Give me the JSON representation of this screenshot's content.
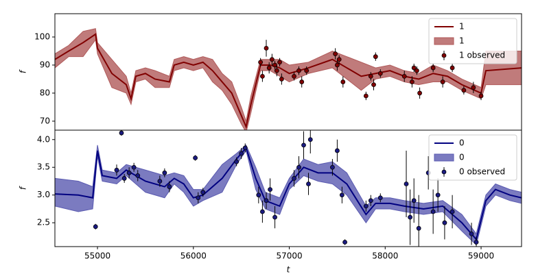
{
  "chart_data": [
    {
      "type": "line",
      "ylabel": "f",
      "xlim": [
        54556,
        59422
      ],
      "ylim": [
        66.8,
        108.3
      ],
      "yticks": [
        70,
        80,
        90,
        100
      ],
      "legend": "upper right",
      "series": [
        {
          "name": "1",
          "type": "line",
          "color": "#800000",
          "x": [
            54556,
            54700,
            54850,
            54980,
            55000,
            55150,
            55300,
            55350,
            55400,
            55500,
            55600,
            55750,
            55800,
            55900,
            56000,
            56100,
            56200,
            56300,
            56400,
            56500,
            56550,
            56600,
            56700,
            56800,
            56900,
            57000,
            57200,
            57450,
            57600,
            57750,
            57900,
            58050,
            58200,
            58350,
            58500,
            58650,
            58800,
            59000,
            59050,
            59422
          ],
          "values": [
            92,
            95,
            98,
            101,
            96,
            87,
            83,
            78,
            86,
            87,
            85,
            84,
            90,
            91,
            90,
            91,
            88,
            84,
            80,
            72,
            68,
            76,
            90,
            90,
            89,
            87,
            89,
            92,
            89,
            86,
            87,
            88,
            86,
            85,
            87,
            86,
            83,
            80,
            88,
            89
          ]
        },
        {
          "name": "1",
          "type": "band",
          "color": "#b05a5a",
          "x": [
            54556,
            54700,
            54850,
            54980,
            55000,
            55150,
            55300,
            55350,
            55400,
            55500,
            55600,
            55750,
            55800,
            55900,
            56000,
            56100,
            56200,
            56300,
            56400,
            56500,
            56550,
            56600,
            56700,
            56800,
            56900,
            57000,
            57200,
            57450,
            57600,
            57750,
            57900,
            58050,
            58200,
            58350,
            58500,
            58650,
            58800,
            59000,
            59050,
            59422
          ],
          "lower": [
            89,
            93,
            93,
            99,
            94,
            82,
            80,
            76,
            84,
            85,
            82,
            82,
            88,
            89,
            88,
            89,
            84,
            81,
            76,
            69,
            66,
            73,
            88,
            88,
            86,
            84,
            87,
            89,
            85,
            81,
            85,
            86,
            84,
            83,
            84,
            84,
            81,
            78,
            83,
            83
          ],
          "upper": [
            94,
            97,
            102,
            103,
            98,
            92,
            86,
            80,
            88,
            89,
            88,
            86,
            92,
            93,
            92,
            93,
            92,
            87,
            84,
            75,
            70,
            79,
            92,
            92,
            92,
            90,
            91,
            95,
            93,
            91,
            89,
            90,
            88,
            87,
            90,
            88,
            85,
            82,
            95,
            95
          ]
        },
        {
          "name": "1 observed",
          "type": "scatter",
          "color": "#800000",
          "x": [
            56700,
            56720,
            56760,
            56790,
            56820,
            56850,
            56870,
            56900,
            56920,
            57050,
            57100,
            57130,
            57180,
            57480,
            57500,
            57520,
            57560,
            57800,
            57850,
            57880,
            57900,
            57950,
            58200,
            58280,
            58300,
            58330,
            58360,
            58500,
            58600,
            58700,
            58820,
            58920,
            59000
          ],
          "values": [
            91,
            86,
            96,
            89,
            92,
            90,
            88,
            91,
            85,
            86,
            88,
            84,
            88,
            94,
            90,
            92,
            84,
            79,
            86,
            83,
            93,
            87,
            86,
            84,
            89,
            88,
            80,
            89,
            84,
            89,
            81,
            82,
            79
          ],
          "errors": [
            1.5,
            2,
            3,
            2,
            2,
            1.5,
            2,
            1.5,
            2,
            1.5,
            1.5,
            2,
            1.5,
            2,
            2,
            1.5,
            2,
            1.5,
            1.5,
            2,
            1.5,
            1.5,
            2,
            2,
            1.5,
            1.5,
            2,
            1.5,
            2,
            1.5,
            1.5,
            2,
            1.5
          ]
        }
      ]
    },
    {
      "type": "line",
      "ylabel": "f",
      "xlabel": "t",
      "xlim": [
        54556,
        59422
      ],
      "ylim": [
        2.07,
        4.17
      ],
      "yticks": [
        2.5,
        {
          "value": 3,
          "label": "3.0"
        },
        3.5,
        {
          "value": 4,
          "label": "4.0"
        }
      ],
      "xticks": [
        55000,
        56000,
        57000,
        58000,
        59000
      ],
      "legend": "upper right",
      "series": [
        {
          "name": "0",
          "type": "line",
          "color": "#000080",
          "x": [
            54556,
            54800,
            54950,
            55000,
            55050,
            55200,
            55300,
            55500,
            55700,
            55800,
            55900,
            56000,
            56100,
            56300,
            56450,
            56550,
            56650,
            56750,
            56900,
            57000,
            57150,
            57300,
            57450,
            57600,
            57800,
            57900,
            58050,
            58200,
            58400,
            58600,
            58800,
            58950,
            59050,
            59150,
            59300,
            59422
          ],
          "values": [
            3.02,
            3.0,
            2.95,
            3.8,
            3.35,
            3.3,
            3.45,
            3.25,
            3.15,
            3.3,
            3.2,
            2.95,
            3.0,
            3.3,
            3.65,
            3.85,
            3.3,
            2.9,
            2.8,
            3.2,
            3.5,
            3.4,
            3.4,
            3.2,
            2.65,
            2.85,
            2.85,
            2.8,
            2.75,
            2.8,
            2.5,
            2.2,
            2.9,
            3.1,
            3.0,
            2.95
          ]
        },
        {
          "name": "0",
          "type": "band",
          "color": "#5a5ab0",
          "x": [
            54556,
            54800,
            54950,
            55000,
            55050,
            55200,
            55300,
            55500,
            55700,
            55800,
            55900,
            56000,
            56100,
            56300,
            56450,
            56550,
            56650,
            56750,
            56900,
            57000,
            57150,
            57300,
            57450,
            57600,
            57800,
            57900,
            58050,
            58200,
            58400,
            58600,
            58800,
            58950,
            59050,
            59150,
            59300,
            59422
          ],
          "lower": [
            2.8,
            2.7,
            2.75,
            3.7,
            3.25,
            3.2,
            3.35,
            3.05,
            2.95,
            3.2,
            3.05,
            2.8,
            2.9,
            3.05,
            3.55,
            3.8,
            3.1,
            2.75,
            2.65,
            3.1,
            3.35,
            3.25,
            3.2,
            3.0,
            2.5,
            2.75,
            2.75,
            2.7,
            2.65,
            2.7,
            2.35,
            2.1,
            2.8,
            3.0,
            2.9,
            2.85
          ],
          "upper": [
            3.3,
            3.25,
            3.15,
            3.9,
            3.45,
            3.4,
            3.55,
            3.45,
            3.35,
            3.4,
            3.35,
            3.1,
            3.1,
            3.55,
            3.75,
            3.9,
            3.5,
            3.05,
            2.95,
            3.3,
            3.65,
            3.55,
            3.6,
            3.4,
            2.8,
            2.95,
            2.95,
            2.9,
            2.85,
            2.9,
            2.65,
            2.3,
            3.0,
            3.2,
            3.1,
            3.05
          ]
        },
        {
          "name": "0 observed",
          "type": "scatter",
          "color": "#1a1a80",
          "x": [
            54980,
            55200,
            55250,
            55280,
            55330,
            55380,
            55420,
            55650,
            55700,
            55750,
            56020,
            56050,
            56100,
            56450,
            56500,
            56540,
            56680,
            56720,
            56760,
            56800,
            56850,
            57050,
            57100,
            57150,
            57200,
            57220,
            57450,
            57500,
            57550,
            57580,
            57800,
            57850,
            57950,
            58220,
            58260,
            58300,
            58350,
            58450,
            58500,
            58550,
            58620,
            58700,
            58900,
            58950
          ],
          "values": [
            2.43,
            3.45,
            4.12,
            3.3,
            3.4,
            3.5,
            3.35,
            3.25,
            3.4,
            3.15,
            3.67,
            2.95,
            3.05,
            3.6,
            3.75,
            3.85,
            3.0,
            2.7,
            2.9,
            3.1,
            2.6,
            3.3,
            3.5,
            3.9,
            3.2,
            4.0,
            3.5,
            3.8,
            3.0,
            2.15,
            2.8,
            2.9,
            2.95,
            3.2,
            2.6,
            2.9,
            2.4,
            3.4,
            2.7,
            3.0,
            2.5,
            2.7,
            2.3,
            2.15
          ],
          "errors": [
            0.05,
            0.1,
            0.05,
            0.08,
            0.1,
            0.08,
            0.1,
            0.1,
            0.08,
            0.1,
            0.05,
            0.1,
            0.08,
            0.08,
            0.1,
            0.08,
            0.15,
            0.2,
            0.15,
            0.2,
            0.2,
            0.15,
            0.2,
            0.25,
            0.2,
            0.25,
            0.15,
            0.2,
            0.15,
            0.05,
            0.1,
            0.1,
            0.08,
            0.6,
            0.5,
            0.4,
            0.6,
            0.3,
            0.4,
            0.3,
            0.3,
            0.3,
            0.2,
            0.1
          ]
        }
      ]
    }
  ]
}
